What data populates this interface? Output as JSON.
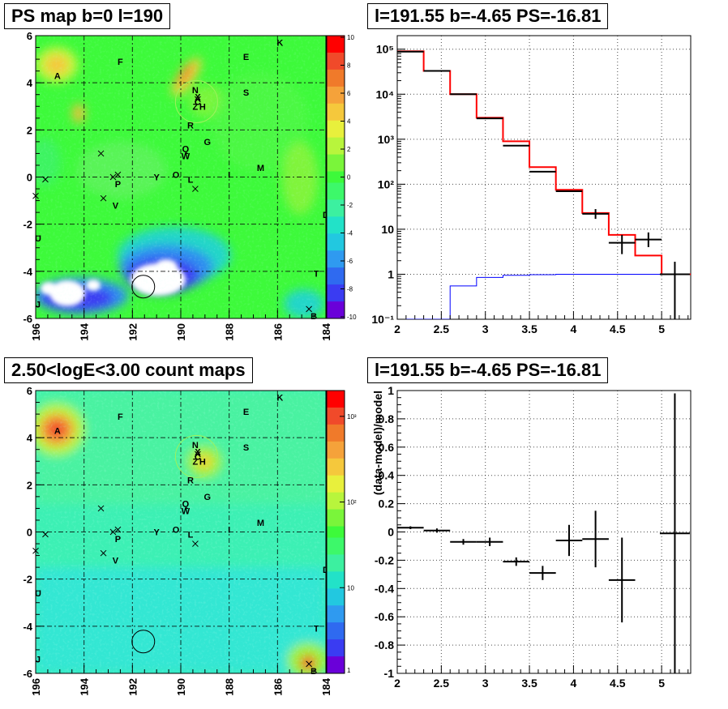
{
  "panels": {
    "ps_map": {
      "title": "PS map b=0 l=190",
      "colorbar_ticks": [
        "10",
        "8",
        "6",
        "4",
        "2",
        "0",
        "-2",
        "-4",
        "-6",
        "-8",
        "-10"
      ]
    },
    "spectrum": {
      "title": "l=191.55 b=-4.65 PS=-16.81"
    },
    "count_map": {
      "title": "2.50<logE<3.00 count maps",
      "colorbar_ticks": [
        "10³",
        "10²",
        "10",
        "1"
      ]
    },
    "residual": {
      "title": "l=191.55 b=-4.65 PS=-16.81"
    }
  },
  "map_axes": {
    "x_ticks": [
      "196",
      "194",
      "192",
      "190",
      "188",
      "186",
      "184"
    ],
    "y_ticks": [
      "6",
      "4",
      "2",
      "0",
      "-2",
      "-4",
      "-6"
    ]
  },
  "sources": [
    {
      "label": "A",
      "l": 195.1,
      "b": 4.3
    },
    {
      "label": "F",
      "l": 192.5,
      "b": 4.9
    },
    {
      "label": "E",
      "l": 187.3,
      "b": 5.1
    },
    {
      "label": "K",
      "l": 185.9,
      "b": 5.7
    },
    {
      "label": "N",
      "l": 189.4,
      "b": 3.7
    },
    {
      "label": "X",
      "l": 189.3,
      "b": 3.4
    },
    {
      "label": "C",
      "l": 189.3,
      "b": 3.2
    },
    {
      "label": "Z",
      "l": 189.4,
      "b": 3.0
    },
    {
      "label": "H",
      "l": 189.1,
      "b": 3.0
    },
    {
      "label": "S",
      "l": 187.3,
      "b": 3.6
    },
    {
      "label": "R",
      "l": 189.6,
      "b": 2.2
    },
    {
      "label": "G",
      "l": 188.9,
      "b": 1.5
    },
    {
      "label": "Q",
      "l": 189.8,
      "b": 1.2
    },
    {
      "label": "W",
      "l": 189.8,
      "b": 0.9
    },
    {
      "label": "O",
      "l": 190.2,
      "b": 0.1
    },
    {
      "label": "L",
      "l": 189.6,
      "b": -0.1
    },
    {
      "label": "Y",
      "l": 191.0,
      "b": 0.0
    },
    {
      "label": "I",
      "l": 188.0,
      "b": 0.1
    },
    {
      "label": "M",
      "l": 186.7,
      "b": 0.4
    },
    {
      "label": "P",
      "l": 192.6,
      "b": -0.3
    },
    {
      "label": "V",
      "l": 192.7,
      "b": -1.2
    },
    {
      "label": "D",
      "l": 184.0,
      "b": -1.6
    },
    {
      "label": "U",
      "l": 195.9,
      "b": -2.6
    },
    {
      "label": "T",
      "l": 184.4,
      "b": -4.1
    },
    {
      "label": "J",
      "l": 195.9,
      "b": -5.4
    },
    {
      "label": "B",
      "l": 184.5,
      "b": -5.9
    }
  ],
  "crosses": [
    {
      "l": 195.6,
      "b": -0.1
    },
    {
      "l": 196.0,
      "b": -0.8
    },
    {
      "l": 193.3,
      "b": 1.0
    },
    {
      "l": 193.2,
      "b": -0.9
    },
    {
      "l": 192.6,
      "b": 0.1
    },
    {
      "l": 192.8,
      "b": 0.0
    },
    {
      "l": 189.4,
      "b": -0.5
    },
    {
      "l": 189.3,
      "b": 3.3
    },
    {
      "l": 184.7,
      "b": -5.6
    }
  ],
  "pointing": {
    "l": 191.55,
    "b": -4.65
  },
  "chart_data": [
    {
      "type": "heatmap",
      "title": "PS map b=0 l=190",
      "x_range": [
        196,
        184
      ],
      "y_range": [
        -6,
        6
      ],
      "z_range": [
        -10,
        10
      ]
    },
    {
      "type": "line",
      "title": "l=191.55 b=-4.65 PS=-16.81",
      "xlim": [
        2,
        5.33
      ],
      "ylim": [
        0.1,
        200000
      ],
      "ylog": true,
      "x_ticks": [
        "2",
        "2.5",
        "3",
        "3.5",
        "4",
        "4.5",
        "5"
      ],
      "y_ticks": [
        "10⁻¹",
        "1",
        "10",
        "10²",
        "10³",
        "10⁴",
        "10⁵"
      ],
      "bin_edges": [
        2.0,
        2.3,
        2.6,
        2.9,
        3.2,
        3.5,
        3.8,
        4.1,
        4.4,
        4.7,
        5.0,
        5.33
      ],
      "series": [
        {
          "color": "#ff0000",
          "values": [
            90000,
            33000,
            10000,
            3000,
            900,
            240,
            75,
            23,
            7.5,
            2.6,
            1.0
          ]
        },
        {
          "color": "#0000ff",
          "values": [
            0.1,
            0.1,
            0.55,
            0.85,
            0.95,
            0.98,
            1.0,
            1.0,
            1.0,
            1.0,
            1.0
          ]
        }
      ],
      "data_points": [
        {
          "x": 2.15,
          "y": 88000,
          "xerr": 0.15
        },
        {
          "x": 2.45,
          "y": 33000,
          "xerr": 0.15
        },
        {
          "x": 2.75,
          "y": 10000,
          "xerr": 0.15
        },
        {
          "x": 3.05,
          "y": 2900,
          "xerr": 0.15
        },
        {
          "x": 3.35,
          "y": 720,
          "xerr": 0.15
        },
        {
          "x": 3.65,
          "y": 190,
          "xerr": 0.15
        },
        {
          "x": 3.95,
          "y": 70,
          "xerr": 0.15
        },
        {
          "x": 4.25,
          "y": 22,
          "xerr": 0.15,
          "ylo": 17,
          "yhi": 28
        },
        {
          "x": 4.55,
          "y": 5,
          "xerr": 0.15,
          "ylo": 2.8,
          "yhi": 7.5
        },
        {
          "x": 4.85,
          "y": 5.9,
          "xerr": 0.15,
          "ylo": 4.0,
          "yhi": 8.5
        },
        {
          "x": 5.15,
          "y": 1.0,
          "xerr": 0.17,
          "ylo": 0.1,
          "yhi": 1.9
        }
      ]
    },
    {
      "type": "heatmap",
      "title": "2.50<logE<3.00 count maps",
      "x_range": [
        196,
        184
      ],
      "y_range": [
        -6,
        6
      ],
      "z_range": [
        1,
        2000
      ],
      "zlog": true
    },
    {
      "type": "scatter",
      "title": "l=191.55 b=-4.65 PS=-16.81",
      "ylabel": "(data-model)/model",
      "xlim": [
        2,
        5.33
      ],
      "ylim": [
        -1,
        1
      ],
      "x_ticks": [
        "2",
        "2.5",
        "3",
        "3.5",
        "4",
        "4.5",
        "5"
      ],
      "y_ticks": [
        "1",
        "0.8",
        "0.6",
        "0.4",
        "0.2",
        "0",
        "-0.2",
        "-0.4",
        "-0.6",
        "-0.8",
        "-1"
      ],
      "points": [
        {
          "x": 2.15,
          "y": 0.03,
          "xerr": 0.15,
          "yerr": 0.01
        },
        {
          "x": 2.45,
          "y": 0.01,
          "xerr": 0.15,
          "yerr": 0.015
        },
        {
          "x": 2.75,
          "y": -0.07,
          "xerr": 0.15,
          "yerr": 0.02
        },
        {
          "x": 3.05,
          "y": -0.07,
          "xerr": 0.15,
          "yerr": 0.03
        },
        {
          "x": 3.35,
          "y": -0.21,
          "xerr": 0.15,
          "yerr": 0.03
        },
        {
          "x": 3.65,
          "y": -0.29,
          "xerr": 0.15,
          "yerr": 0.05
        },
        {
          "x": 3.95,
          "y": -0.06,
          "xerr": 0.15,
          "yerr": 0.11
        },
        {
          "x": 4.25,
          "y": -0.05,
          "xerr": 0.15,
          "yerr": 0.2
        },
        {
          "x": 4.55,
          "y": -0.34,
          "xerr": 0.15,
          "yerr": 0.3
        },
        {
          "x": 5.15,
          "y": -0.01,
          "xerr": 0.17,
          "yerr": 0.99
        }
      ]
    }
  ]
}
